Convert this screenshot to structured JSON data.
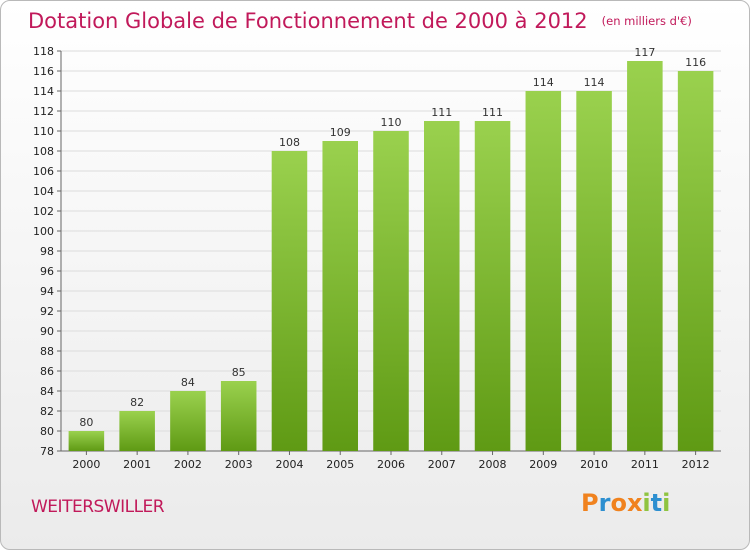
{
  "chart_data": {
    "type": "bar",
    "title": "Dotation Globale de Fonctionnement de 2000 à 2012",
    "subtitle": "(en milliers d'€)",
    "categories": [
      "2000",
      "2001",
      "2002",
      "2003",
      "2004",
      "2005",
      "2006",
      "2007",
      "2008",
      "2009",
      "2010",
      "2011",
      "2012"
    ],
    "values": [
      80,
      82,
      84,
      85,
      108,
      109,
      110,
      111,
      111,
      114,
      114,
      117,
      116
    ],
    "ylim": [
      78,
      118
    ],
    "yticks": [
      78,
      80,
      82,
      84,
      86,
      88,
      90,
      92,
      94,
      96,
      98,
      100,
      102,
      104,
      106,
      108,
      110,
      112,
      114,
      116,
      118
    ],
    "grid": true,
    "bar_color_top": "#9ad14e",
    "bar_color_bottom": "#5f9a14"
  },
  "commune": "WEITERSWILLER",
  "logo": {
    "letters": [
      "P",
      "r",
      "o",
      "x",
      "i",
      "t",
      "i"
    ],
    "colors": [
      "#f0821e",
      "#2d8fd0",
      "#f0821e",
      "#f0821e",
      "#8fc440",
      "#2d8fd0",
      "#8fc440"
    ]
  }
}
